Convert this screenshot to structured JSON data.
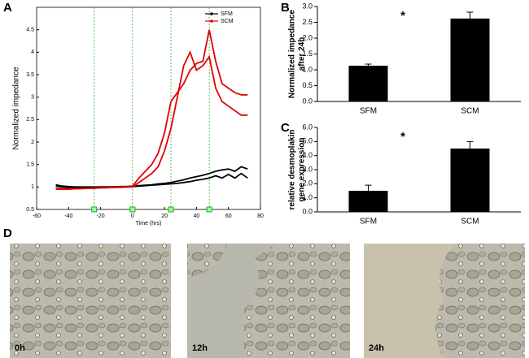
{
  "panel_labels": [
    "A",
    "B",
    "C",
    "D"
  ],
  "chart_data": [
    {
      "type": "line",
      "xlabel": "Time (hrs)",
      "ylabel": "Normalized impedance",
      "x": [
        -48,
        -44,
        -40,
        -36,
        -32,
        -28,
        -24,
        -20,
        -16,
        -12,
        -8,
        -4,
        0,
        4,
        8,
        12,
        16,
        20,
        24,
        28,
        32,
        36,
        40,
        44,
        48,
        52,
        56,
        60,
        64,
        68,
        72
      ],
      "series": [
        {
          "name": "SFM",
          "color": "#000000",
          "lines": [
            {
              "values": [
                1.05,
                1.02,
                1.01,
                1.0,
                1.0,
                1.0,
                1.0,
                1.0,
                1.0,
                1.0,
                1.01,
                1.01,
                1.02,
                1.03,
                1.04,
                1.05,
                1.07,
                1.08,
                1.1,
                1.13,
                1.16,
                1.2,
                1.23,
                1.26,
                1.3,
                1.35,
                1.38,
                1.4,
                1.35,
                1.45,
                1.4
              ]
            },
            {
              "values": [
                1.02,
                1.0,
                0.99,
                0.99,
                0.99,
                0.99,
                0.99,
                1.0,
                1.0,
                1.0,
                1.0,
                1.0,
                1.01,
                1.02,
                1.03,
                1.04,
                1.05,
                1.06,
                1.07,
                1.08,
                1.1,
                1.12,
                1.15,
                1.17,
                1.2,
                1.25,
                1.2,
                1.28,
                1.2,
                1.3,
                1.2
              ]
            }
          ]
        },
        {
          "name": "SCM",
          "color": "#e00000",
          "lines": [
            {
              "values": [
                0.97,
                0.96,
                0.96,
                0.96,
                0.97,
                0.97,
                0.98,
                0.98,
                0.99,
                0.99,
                1.0,
                1.0,
                1.02,
                1.2,
                1.35,
                1.5,
                1.75,
                2.2,
                2.9,
                3.1,
                3.3,
                3.6,
                3.75,
                3.8,
                4.5,
                3.8,
                3.3,
                3.2,
                3.1,
                3.05,
                3.05
              ]
            },
            {
              "values": [
                0.95,
                0.95,
                0.95,
                0.96,
                0.96,
                0.97,
                0.97,
                0.98,
                0.98,
                0.99,
                0.99,
                1.0,
                1.0,
                1.1,
                1.2,
                1.3,
                1.45,
                1.8,
                2.3,
                3.0,
                3.7,
                4.0,
                3.6,
                3.7,
                3.9,
                3.2,
                2.9,
                2.8,
                2.7,
                2.6,
                2.6
              ]
            }
          ]
        }
      ],
      "events": [
        -24,
        0,
        24,
        48
      ],
      "xlim": [
        -60,
        80
      ],
      "xticks": [
        -60,
        -40,
        -20,
        0,
        20,
        40,
        60,
        80
      ],
      "ylim": [
        0.5,
        5
      ],
      "yticks": [
        0.5,
        1,
        1.5,
        2,
        2.5,
        3,
        3.5,
        4,
        4.5
      ]
    },
    {
      "type": "bar",
      "ylabel": [
        "Normalized impedance",
        "after 24h"
      ],
      "categories": [
        "SFM",
        "SCM"
      ],
      "values": [
        1.13,
        2.62
      ],
      "errors": [
        0.05,
        0.2
      ],
      "color": "#000000",
      "annotation": "*",
      "ylim": [
        0,
        3
      ],
      "yticks": [
        {
          "value": 0,
          "label": "0.0"
        },
        {
          "value": 0.5,
          "label": "0.5"
        },
        {
          "value": 1,
          "label": "1.0"
        },
        {
          "value": 1.5,
          "label": "1.5"
        },
        {
          "value": 2,
          "label": "2.0"
        },
        {
          "value": 2.5,
          "label": "2.5"
        },
        {
          "value": 3,
          "label": "3.0"
        }
      ]
    },
    {
      "type": "bar",
      "ylabel": [
        "relative desmoplakin",
        "gene expression"
      ],
      "categories": [
        "SFM",
        "SCM"
      ],
      "values": [
        1.5,
        4.5
      ],
      "errors": [
        0.4,
        0.5
      ],
      "color": "#000000",
      "annotation": "*",
      "ylim": [
        0,
        6
      ],
      "yticks": [
        {
          "value": 0,
          "label": "0.0"
        },
        {
          "value": 1,
          "label": "1.0"
        },
        {
          "value": 2,
          "label": "2.0"
        },
        {
          "value": 3,
          "label": "3.0"
        },
        {
          "value": 4,
          "label": "4.0"
        },
        {
          "value": 5,
          "label": "5.0"
        },
        {
          "value": 6,
          "label": "6.0"
        }
      ]
    }
  ],
  "micrographs": [
    "0h",
    "12h",
    "24h"
  ]
}
